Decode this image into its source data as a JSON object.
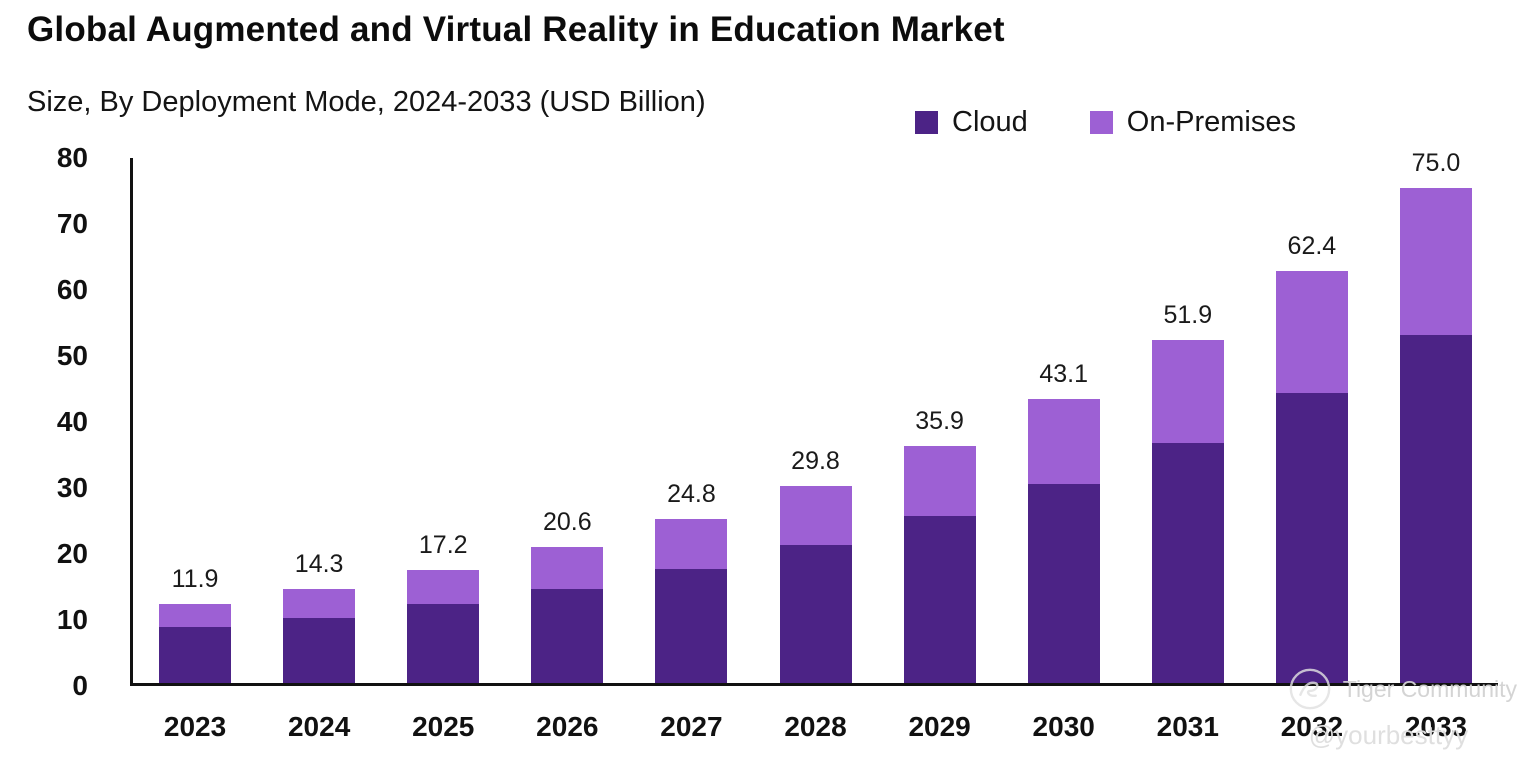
{
  "title": "Global Augmented and Virtual Reality in Education Market",
  "subtitle": "Size, By Deployment Mode, 2024-2033 (USD Billion)",
  "legend": [
    {
      "label": "Cloud",
      "color": "#4c2386"
    },
    {
      "label": "On-Premises",
      "color": "#9d60d4"
    }
  ],
  "watermark": {
    "brand": "Tiger Community",
    "handle": "@yourbesttyy"
  },
  "chart_data": {
    "type": "bar",
    "stacked": true,
    "title": "Global Augmented and Virtual Reality in Education Market",
    "subtitle": "Size, By Deployment Mode, 2024-2033 (USD Billion)",
    "unit": "USD Billion",
    "categories": [
      "2023",
      "2024",
      "2025",
      "2026",
      "2027",
      "2028",
      "2029",
      "2030",
      "2031",
      "2032",
      "2033"
    ],
    "series": [
      {
        "name": "Cloud",
        "color": "#4c2386",
        "values": [
          8.5,
          9.8,
          12.0,
          14.2,
          17.3,
          20.9,
          25.3,
          30.2,
          36.4,
          43.9,
          52.7
        ]
      },
      {
        "name": "On-Premises",
        "color": "#9d60d4",
        "values": [
          3.4,
          4.5,
          5.2,
          6.4,
          7.5,
          8.9,
          10.6,
          12.9,
          15.5,
          18.5,
          22.3
        ]
      }
    ],
    "totals": [
      11.9,
      14.3,
      17.2,
      20.6,
      24.8,
      29.8,
      35.9,
      43.1,
      51.9,
      62.4,
      75.0
    ],
    "ylim": [
      0,
      80
    ],
    "yticks": [
      0,
      10,
      20,
      30,
      40,
      50,
      60,
      70,
      80
    ],
    "grid": false,
    "legend_position": "top-right"
  }
}
